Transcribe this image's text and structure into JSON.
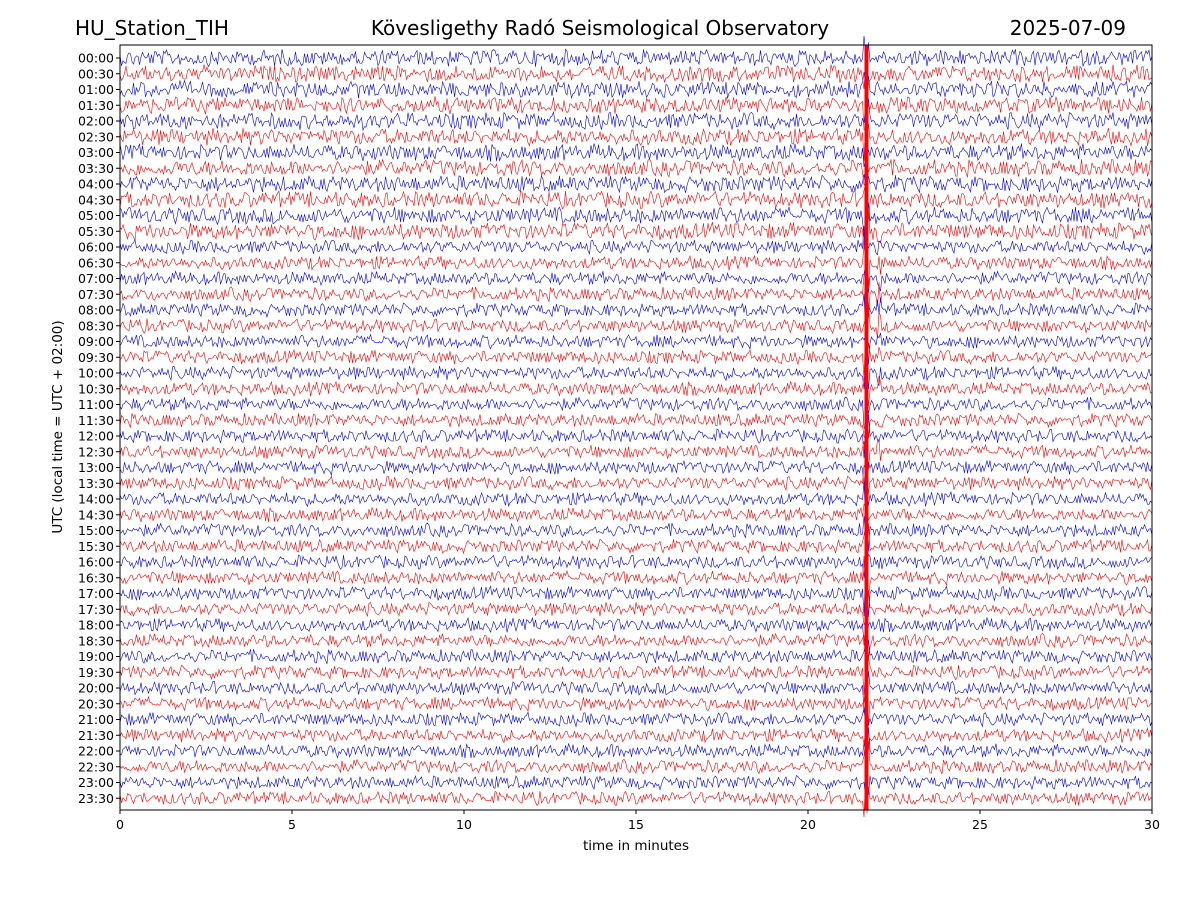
{
  "header": {
    "station": "HU_Station_TIH",
    "observatory": "Kövesligethy Radó Seismological Observatory",
    "date": "2025-07-09"
  },
  "chart_data": {
    "type": "line",
    "title": "Kövesligethy Radó Seismological Observatory",
    "xlabel": "time in minutes",
    "ylabel": "UTC (local time = UTC + 02:00)",
    "xlim": [
      0,
      30
    ],
    "xticks": [
      "0",
      "5",
      "10",
      "15",
      "20",
      "25",
      "30"
    ],
    "rows": [
      "00:00",
      "00:30",
      "01:00",
      "01:30",
      "02:00",
      "02:30",
      "03:00",
      "03:30",
      "04:00",
      "04:30",
      "05:00",
      "05:30",
      "06:00",
      "06:30",
      "07:00",
      "07:30",
      "08:00",
      "08:30",
      "09:00",
      "09:30",
      "10:00",
      "10:30",
      "11:00",
      "11:30",
      "12:00",
      "12:30",
      "13:00",
      "13:30",
      "14:00",
      "14:30",
      "15:00",
      "15:30",
      "16:00",
      "16:30",
      "17:00",
      "17:30",
      "18:00",
      "18:30",
      "19:00",
      "19:30",
      "20:00",
      "20:30",
      "21:00",
      "21:30",
      "22:00",
      "22:30",
      "23:00",
      "23:30"
    ],
    "colors": [
      "#0000ff",
      "#ff0000"
    ],
    "event_minute": 21.7,
    "grid": false
  }
}
